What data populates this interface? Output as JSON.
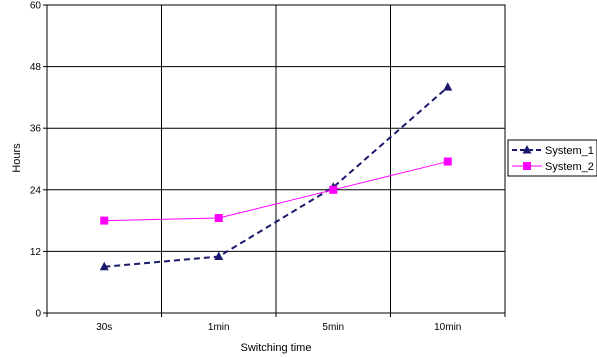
{
  "chart_data": {
    "type": "line",
    "title": "",
    "xlabel": "Switching time",
    "ylabel": "Hours",
    "categories": [
      "30s",
      "1min",
      "5min",
      "10min"
    ],
    "ylim": [
      0,
      60
    ],
    "yticks": [
      0,
      12,
      24,
      36,
      48,
      60
    ],
    "grid": true,
    "legend_position": "right",
    "series": [
      {
        "name": "System_1",
        "values": [
          9,
          11,
          24.5,
          44
        ],
        "color": "#1a1a6e",
        "line_style": "dashed",
        "marker": "triangle"
      },
      {
        "name": "System_2",
        "values": [
          18,
          18.5,
          24,
          29.5
        ],
        "color": "#ff00ff",
        "line_style": "solid",
        "marker": "square"
      }
    ]
  }
}
